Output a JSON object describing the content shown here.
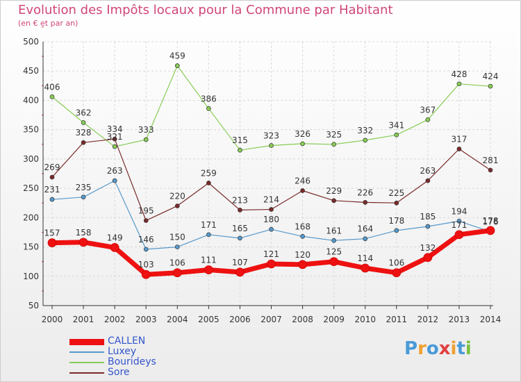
{
  "title": "Evolution des Impôts locaux pour la Commune par Habitant",
  "subtitle": "(en € et par an)",
  "logo": {
    "letters": [
      "P",
      "r",
      "o",
      "x",
      "i",
      "t",
      "i"
    ],
    "colors": [
      "#4a9ad8",
      "#f0a030",
      "#4a9ad8",
      "#e04040",
      "#f0a030",
      "#4a9ad8",
      "#7ac040"
    ]
  },
  "chart_data": {
    "type": "line",
    "x": [
      "2000",
      "2001",
      "2002",
      "2003",
      "2004",
      "2005",
      "2006",
      "2007",
      "2008",
      "2009",
      "2010",
      "2011",
      "2012",
      "2013",
      "2014"
    ],
    "ylim": [
      50,
      500
    ],
    "yticks": [
      "50",
      "100",
      "150",
      "200",
      "250",
      "300",
      "350",
      "400",
      "450",
      "500"
    ],
    "grid": true,
    "legend_position": "bottom-left",
    "series": [
      {
        "name": "Bourideys",
        "color": "#88cc55",
        "width": 1.2,
        "values": [
          406,
          362,
          321,
          333,
          459,
          386,
          315,
          323,
          326,
          325,
          332,
          341,
          367,
          428,
          424
        ],
        "labels": [
          "406",
          "362",
          "321",
          "333",
          "459",
          "386",
          "315",
          "323",
          "326",
          "325",
          "332",
          "341",
          "367",
          "428",
          "424"
        ]
      },
      {
        "name": "Sore",
        "color": "#7a2a2a",
        "width": 1.2,
        "values": [
          269,
          328,
          334,
          195,
          220,
          259,
          213,
          214,
          246,
          229,
          226,
          225,
          263,
          317,
          281
        ],
        "labels": [
          "269",
          "328",
          "334",
          "195",
          "220",
          "259",
          "213",
          "214",
          "246",
          "229",
          "226",
          "225",
          "263",
          "317",
          "281"
        ]
      },
      {
        "name": "Luxey",
        "color": "#5599cc",
        "width": 1.2,
        "values": [
          231,
          235,
          263,
          146,
          150,
          171,
          165,
          180,
          168,
          161,
          164,
          178,
          185,
          194,
          176
        ],
        "labels": [
          "231",
          "235",
          "263",
          "146",
          "150",
          "171",
          "165",
          "180",
          "168",
          "161",
          "164",
          "178",
          "185",
          "194",
          "176"
        ]
      },
      {
        "name": "CALLEN",
        "color": "#ee1111",
        "width": 7,
        "values": [
          157,
          158,
          149,
          103,
          106,
          111,
          107,
          121,
          120,
          125,
          114,
          106,
          132,
          171,
          178
        ],
        "labels": [
          "157",
          "158",
          "149",
          "103",
          "106",
          "111",
          "107",
          "121",
          "120",
          "125",
          "114",
          "106",
          "132",
          "171",
          "178"
        ]
      }
    ],
    "legend_order": [
      "CALLEN",
      "Luxey",
      "Bourideys",
      "Sore"
    ]
  }
}
